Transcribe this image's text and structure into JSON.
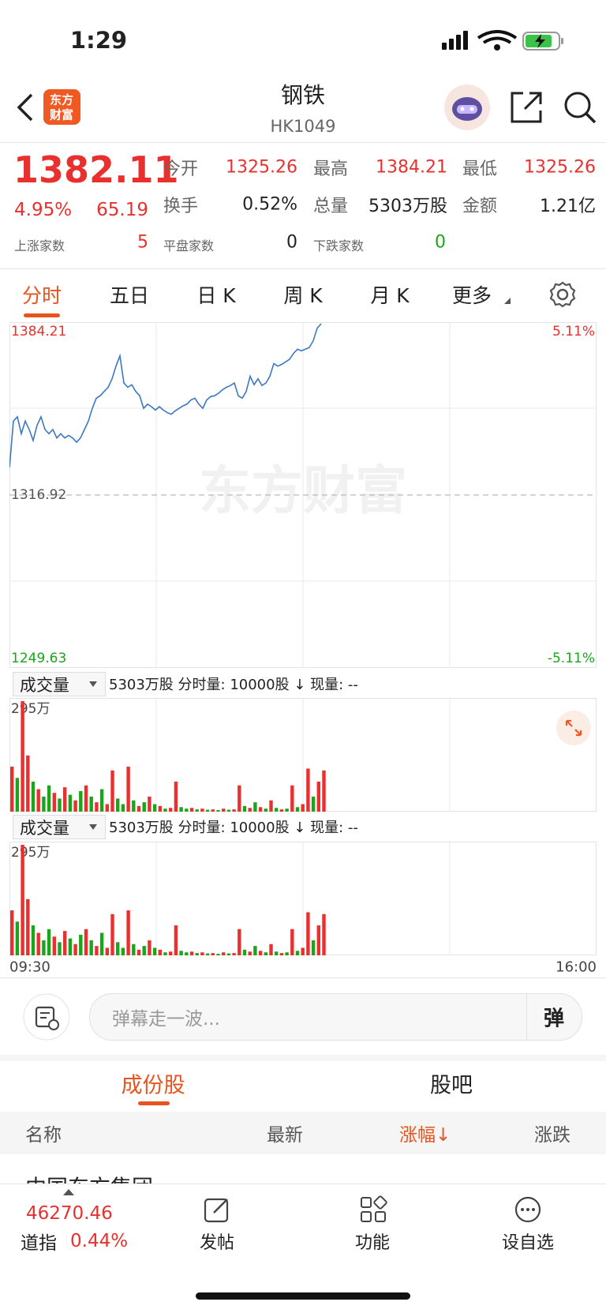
{
  "status_bar": {
    "time": "1:29"
  },
  "header": {
    "title": "钢铁",
    "code": "HK1049",
    "logo": [
      "东方",
      "财富"
    ]
  },
  "quote": {
    "price": "1382.11",
    "change_pct": "4.95%",
    "change": "65.19",
    "fields": [
      {
        "label": "今开",
        "value": "1325.26"
      },
      {
        "label": "最高",
        "value": "1384.21"
      },
      {
        "label": "最低",
        "value": "1325.26"
      },
      {
        "label": "换手",
        "value": "0.52%"
      },
      {
        "label": "总量",
        "value": "5303万股"
      },
      {
        "label": "金额",
        "value": "1.21亿"
      }
    ],
    "breadth": [
      {
        "label": "上涨家数",
        "value": "5"
      },
      {
        "label": "平盘家数",
        "value": "0"
      },
      {
        "label": "下跌家数",
        "value": "0"
      }
    ]
  },
  "tabs": [
    "分时",
    "五日",
    "日 K",
    "周 K",
    "月 K",
    "更多"
  ],
  "intraday": {
    "type": "line",
    "color": "#3b78c4",
    "ylim": [
      1249.63,
      1384.21
    ],
    "yticks": [
      1384.21,
      1316.92,
      1249.63
    ],
    "y2lim": [
      -5.11,
      5.11
    ],
    "y2ticks": [
      {
        "value": 5.11,
        "label": "5.11%"
      },
      {
        "value": -5.11,
        "label": "-5.11%"
      }
    ],
    "values": [
      1327.61,
      1345.71,
      1347.36,
      1340.78,
      1345.71,
      1342.42,
      1338.14,
      1344.07,
      1347.36,
      1342.42,
      1340.78,
      1342.42,
      1339.13,
      1340.78,
      1339.13,
      1340.12,
      1339.13,
      1337.48,
      1339.13,
      1342.42,
      1345.71,
      1350.65,
      1354.6,
      1355.58,
      1357.23,
      1358.87,
      1362.16,
      1367.1,
      1371.05,
      1360.52,
      1358.87,
      1359.86,
      1357.23,
      1355.58,
      1350.65,
      1352.29,
      1351.31,
      1349.99,
      1351.31,
      1349.99,
      1349.0,
      1348.34,
      1349.66,
      1350.65,
      1351.63,
      1352.29,
      1353.94,
      1354.6,
      1352.29,
      1350.65,
      1353.94,
      1355.25,
      1355.58,
      1356.57,
      1357.89,
      1358.87,
      1359.53,
      1360.52,
      1355.58,
      1354.6,
      1357.23,
      1363.15,
      1359.86,
      1362.16,
      1359.53,
      1360.52,
      1363.15,
      1368.09,
      1367.1,
      1367.76,
      1368.74,
      1369.73,
      1372.04,
      1373.68,
      1373.02,
      1373.68,
      1374.34,
      1376.97,
      1381.91,
      1383.55
    ],
    "watermark": "东方财富"
  },
  "volume_panels": [
    {
      "type": "bar",
      "selector": "成交量",
      "summary": "5303万股 分时量: 10000股 ↓ 现量: --",
      "ylim": [
        0,
        295
      ],
      "yticks": [
        {
          "value": 295,
          "label": "295万"
        }
      ],
      "series": [
        {
          "color": "#e8312f",
          "values": [
            120,
            null,
            295,
            150,
            null,
            60,
            null,
            null,
            50,
            null,
            65,
            null,
            30,
            null,
            70,
            null,
            25,
            null,
            20,
            110,
            null,
            null,
            120,
            null,
            15,
            null,
            40,
            null,
            15,
            null,
            10,
            80,
            null,
            null,
            10,
            null,
            8,
            null,
            6,
            null,
            8,
            null,
            6,
            70,
            null,
            10,
            null,
            12,
            null,
            30,
            null,
            6,
            null,
            70,
            null,
            20,
            115,
            null,
            80,
            110
          ]
        },
        {
          "color": "#1aa51a",
          "values": [
            null,
            90,
            null,
            null,
            80,
            null,
            40,
            70,
            null,
            35,
            null,
            45,
            null,
            55,
            null,
            40,
            null,
            60,
            null,
            null,
            35,
            20,
            null,
            30,
            null,
            25,
            null,
            20,
            null,
            8,
            null,
            null,
            12,
            8,
            null,
            6,
            null,
            5,
            null,
            4,
            null,
            5,
            null,
            null,
            15,
            null,
            25,
            null,
            8,
            null,
            10,
            null,
            8,
            null,
            12,
            null,
            null,
            40,
            null,
            null
          ]
        }
      ]
    },
    {
      "type": "bar",
      "selector": "成交量",
      "summary": "5303万股 分时量: 10000股 ↓ 现量: --",
      "ylim": [
        0,
        295
      ],
      "yticks": [
        {
          "value": 295,
          "label": "295万"
        }
      ],
      "series": [
        {
          "color": "#e8312f",
          "values": [
            120,
            null,
            295,
            150,
            null,
            60,
            null,
            null,
            50,
            null,
            65,
            null,
            30,
            null,
            70,
            null,
            25,
            null,
            20,
            110,
            null,
            null,
            120,
            null,
            15,
            null,
            40,
            null,
            15,
            null,
            10,
            80,
            null,
            null,
            10,
            null,
            8,
            null,
            6,
            null,
            8,
            null,
            6,
            70,
            null,
            10,
            null,
            12,
            null,
            30,
            null,
            6,
            null,
            70,
            null,
            20,
            115,
            null,
            80,
            110
          ]
        },
        {
          "color": "#1aa51a",
          "values": [
            null,
            90,
            null,
            null,
            80,
            null,
            40,
            70,
            null,
            35,
            null,
            45,
            null,
            55,
            null,
            40,
            null,
            60,
            null,
            null,
            35,
            20,
            null,
            30,
            null,
            25,
            null,
            20,
            null,
            8,
            null,
            null,
            12,
            8,
            null,
            6,
            null,
            5,
            null,
            4,
            null,
            5,
            null,
            null,
            15,
            null,
            25,
            null,
            8,
            null,
            10,
            null,
            8,
            null,
            12,
            null,
            null,
            40,
            null,
            null
          ]
        }
      ]
    }
  ],
  "time_axis": [
    "09:30",
    "16:00"
  ],
  "barrage": {
    "placeholder": "弹幕走一波...",
    "button": "弹"
  },
  "section_tabs": [
    "成份股",
    "股吧"
  ],
  "table": {
    "columns": [
      "名称",
      "最新",
      "涨幅↓",
      "涨跌"
    ],
    "rows": [
      [
        "中国东方集团"
      ]
    ]
  },
  "bottom_nav": {
    "index_value": "46270.46",
    "index_name": "道指",
    "index_change": "0.44%",
    "items": [
      "发帖",
      "功能",
      "设自选"
    ]
  }
}
